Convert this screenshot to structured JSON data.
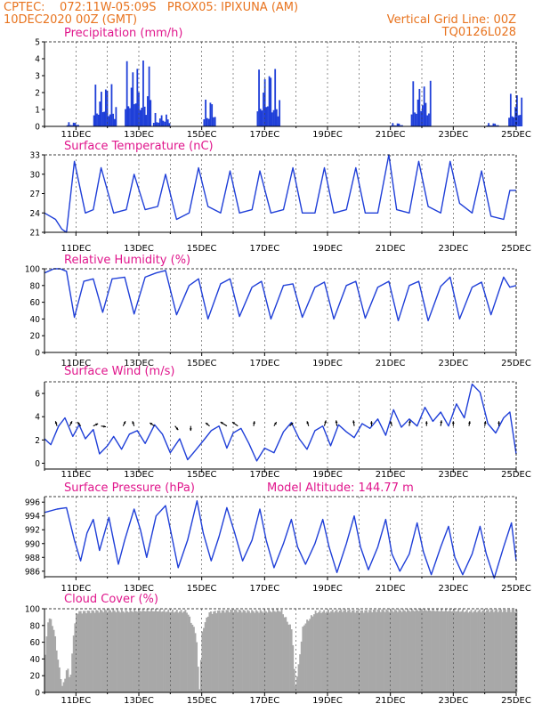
{
  "header": {
    "line1_left": "CPTEC:    072:11W-05:09S   PROX05: IPIXUNA (AM)",
    "line2_left": "10DEC2020 00Z (GMT)",
    "line2_right": "Vertical Grid Line: 00Z",
    "line3_right": "TQ0126L028"
  },
  "colors": {
    "header": "#e8731e",
    "title": "#e0168c",
    "series": "#1f3fd8",
    "cloud": "#a8a8a8",
    "arrow": "#000000"
  },
  "chart_data": [
    {
      "type": "bar",
      "title": "Precipitation (mm/h)",
      "ylim": [
        0,
        5
      ],
      "yticks": [
        0,
        1,
        2,
        3,
        4,
        5
      ],
      "x_tick_labels": [
        "11DEC",
        "13DEC",
        "15DEC",
        "17DEC",
        "19DEC",
        "21DEC",
        "23DEC",
        "25DEC"
      ],
      "series": [
        {
          "bursts": [
            {
              "start": 0.7,
              "end": 1.05,
              "peak": 0.25
            },
            {
              "start": 1.55,
              "end": 2.25,
              "peak": 2.5
            },
            {
              "start": 2.55,
              "end": 3.35,
              "peak": 3.9
            },
            {
              "start": 3.45,
              "end": 3.95,
              "peak": 0.8
            },
            {
              "start": 5.05,
              "end": 5.4,
              "peak": 1.6
            },
            {
              "start": 6.75,
              "end": 7.45,
              "peak": 3.4
            },
            {
              "start": 11.0,
              "end": 11.35,
              "peak": 0.2
            },
            {
              "start": 11.65,
              "end": 12.25,
              "peak": 2.7
            },
            {
              "start": 14.05,
              "end": 14.4,
              "peak": 0.2
            },
            {
              "start": 14.75,
              "end": 15.15,
              "peak": 1.95
            }
          ]
        }
      ]
    },
    {
      "type": "line",
      "title": "Surface Temperature (nC)",
      "ylim": [
        21,
        33
      ],
      "yticks": [
        21,
        24,
        27,
        30,
        33
      ],
      "x_tick_labels": [
        "11DEC",
        "13DEC",
        "15DEC",
        "17DEC",
        "19DEC",
        "21DEC",
        "23DEC",
        "25DEC"
      ],
      "series": [
        {
          "name": "",
          "x": [
            0,
            0.35,
            0.55,
            0.7,
            0.95,
            1.3,
            1.55,
            1.8,
            2.2,
            2.6,
            2.85,
            3.2,
            3.6,
            3.85,
            4.2,
            4.6,
            4.9,
            5.2,
            5.6,
            5.9,
            6.2,
            6.6,
            6.85,
            7.2,
            7.6,
            7.9,
            8.2,
            8.6,
            8.9,
            9.2,
            9.6,
            9.9,
            10.2,
            10.6,
            10.95,
            11.2,
            11.6,
            11.9,
            12.2,
            12.6,
            12.9,
            13.2,
            13.6,
            13.9,
            14.2,
            14.6,
            14.8,
            15.0
          ],
          "values": [
            24,
            23,
            21.5,
            21,
            32,
            24,
            24.5,
            31,
            24,
            24.5,
            30,
            24.5,
            25,
            30,
            23,
            24,
            31,
            25,
            24,
            30.5,
            24,
            24.5,
            30.5,
            24,
            24.5,
            31,
            24,
            24,
            31,
            24,
            24.5,
            31,
            24,
            24,
            33,
            24.5,
            24,
            32,
            25,
            24,
            32,
            25.5,
            24,
            30.5,
            23.5,
            23,
            27.5,
            27.5
          ]
        }
      ]
    },
    {
      "type": "line",
      "title": "Relative Humidity (%)",
      "ylim": [
        0,
        100
      ],
      "yticks": [
        0,
        20,
        40,
        60,
        80,
        100
      ],
      "x_tick_labels": [
        "11DEC",
        "13DEC",
        "15DEC",
        "17DEC",
        "19DEC",
        "21DEC",
        "23DEC",
        "25DEC"
      ],
      "series": [
        {
          "name": "",
          "x": [
            0,
            0.3,
            0.5,
            0.7,
            0.95,
            1.25,
            1.55,
            1.85,
            2.15,
            2.55,
            2.85,
            3.2,
            3.55,
            3.85,
            4.2,
            4.6,
            4.9,
            5.2,
            5.6,
            5.9,
            6.2,
            6.6,
            6.9,
            7.2,
            7.6,
            7.9,
            8.2,
            8.6,
            8.9,
            9.2,
            9.6,
            9.9,
            10.2,
            10.6,
            10.95,
            11.25,
            11.6,
            11.9,
            12.2,
            12.6,
            12.9,
            13.2,
            13.6,
            13.9,
            14.2,
            14.6,
            14.8,
            15.0
          ],
          "values": [
            95,
            100,
            100,
            97,
            42,
            85,
            88,
            48,
            88,
            90,
            46,
            90,
            95,
            98,
            45,
            80,
            88,
            40,
            82,
            88,
            43,
            78,
            85,
            40,
            80,
            82,
            42,
            78,
            84,
            40,
            80,
            85,
            41,
            78,
            85,
            38,
            80,
            85,
            38,
            79,
            90,
            40,
            78,
            84,
            45,
            90,
            78,
            80
          ]
        }
      ]
    },
    {
      "type": "line",
      "title": "Surface Wind (m/s)",
      "ylim": [
        -0.5,
        7
      ],
      "yticks": [
        0,
        2,
        4,
        6
      ],
      "x_tick_labels": [
        "11DEC",
        "13DEC",
        "15DEC",
        "17DEC",
        "19DEC",
        "21DEC",
        "23DEC",
        "25DEC"
      ],
      "series": [
        {
          "name": "",
          "x": [
            0,
            0.2,
            0.45,
            0.65,
            0.9,
            1.1,
            1.3,
            1.55,
            1.75,
            2.0,
            2.2,
            2.45,
            2.7,
            2.95,
            3.2,
            3.5,
            3.75,
            4.0,
            4.3,
            4.55,
            4.8,
            5.1,
            5.3,
            5.55,
            5.8,
            6.0,
            6.25,
            6.5,
            6.75,
            7.0,
            7.3,
            7.6,
            7.85,
            8.1,
            8.35,
            8.6,
            8.85,
            9.1,
            9.35,
            9.6,
            9.85,
            10.1,
            10.35,
            10.6,
            10.85,
            11.1,
            11.35,
            11.6,
            11.85,
            12.1,
            12.35,
            12.6,
            12.85,
            13.1,
            13.35,
            13.6,
            13.85,
            14.1,
            14.35,
            14.6,
            14.8,
            15.0
          ],
          "values": [
            2.1,
            1.6,
            3.2,
            3.9,
            2.3,
            3.3,
            2.1,
            2.9,
            0.8,
            1.5,
            2.3,
            1.2,
            2.5,
            2.8,
            1.7,
            3.3,
            2.5,
            0.9,
            2.1,
            0.3,
            1.1,
            2.1,
            2.8,
            3.2,
            1.3,
            2.6,
            3.0,
            1.7,
            0.2,
            1.3,
            0.9,
            2.7,
            3.5,
            2.1,
            1.2,
            2.8,
            3.2,
            1.5,
            3.3,
            2.7,
            2.2,
            3.4,
            3.0,
            3.8,
            2.4,
            4.6,
            3.1,
            3.8,
            3.2,
            4.8,
            3.6,
            4.4,
            3.2,
            5.1,
            3.9,
            6.8,
            6.1,
            3.4,
            2.6,
            3.9,
            4.4,
            0.8
          ]
        }
      ],
      "vectors": [
        {
          "x": 0.4,
          "u": -0.2,
          "v": 0.6
        },
        {
          "x": 0.8,
          "u": 0.3,
          "v": 0.6
        },
        {
          "x": 1.15,
          "u": -0.4,
          "v": 0.5
        },
        {
          "x": 1.55,
          "u": 0.6,
          "v": 0.3
        },
        {
          "x": 1.8,
          "u": 0.6,
          "v": -0.1
        },
        {
          "x": 2.5,
          "u": 0.3,
          "v": 0.6
        },
        {
          "x": 2.85,
          "u": -0.2,
          "v": 0.6
        },
        {
          "x": 3.5,
          "u": -0.6,
          "v": 0.4
        },
        {
          "x": 4.15,
          "u": 0.4,
          "v": -0.5
        },
        {
          "x": 4.65,
          "u": 0,
          "v": -0.6
        },
        {
          "x": 5.25,
          "u": -0.5,
          "v": 0.4
        },
        {
          "x": 5.8,
          "u": -0.8,
          "v": 0.5
        },
        {
          "x": 6.15,
          "u": -0.7,
          "v": 0.5
        },
        {
          "x": 6.65,
          "u": 0.1,
          "v": 0.6
        },
        {
          "x": 7.3,
          "u": 0.3,
          "v": 0.5
        },
        {
          "x": 7.8,
          "u": 0.4,
          "v": 0.4
        },
        {
          "x": 8.4,
          "u": -0.2,
          "v": 0.6
        },
        {
          "x": 8.9,
          "u": 0.2,
          "v": 0.7
        },
        {
          "x": 9.3,
          "u": -0.1,
          "v": 0.7
        },
        {
          "x": 9.85,
          "u": -0.1,
          "v": 0.7
        },
        {
          "x": 10.4,
          "u": 0,
          "v": 0.6
        },
        {
          "x": 11.05,
          "u": -0.2,
          "v": 0.6
        },
        {
          "x": 11.6,
          "u": 0.1,
          "v": 0.7
        },
        {
          "x": 12.15,
          "u": 0,
          "v": 0.6
        },
        {
          "x": 12.6,
          "u": 0.1,
          "v": 0.7
        },
        {
          "x": 13.0,
          "u": 0,
          "v": 0.6
        },
        {
          "x": 13.5,
          "u": 0.1,
          "v": 0.6
        },
        {
          "x": 14.0,
          "u": 0.1,
          "v": 0.6
        },
        {
          "x": 14.45,
          "u": 0,
          "v": 0.6
        }
      ]
    },
    {
      "type": "line",
      "title": "Surface Pressure (hPa)",
      "annotation": "Model Altitude: 144.77 m",
      "ylim": [
        985.2,
        996.8
      ],
      "yticks": [
        986,
        988,
        990,
        992,
        994,
        996
      ],
      "x_tick_labels": [
        "11DEC",
        "13DEC",
        "15DEC",
        "17DEC",
        "19DEC",
        "21DEC",
        "23DEC",
        "25DEC"
      ],
      "series": [
        {
          "name": "",
          "x": [
            0,
            0.4,
            0.7,
            0.95,
            1.15,
            1.35,
            1.55,
            1.75,
            2.05,
            2.35,
            2.55,
            2.85,
            3.05,
            3.25,
            3.55,
            3.85,
            4.05,
            4.25,
            4.55,
            4.85,
            5.05,
            5.3,
            5.55,
            5.8,
            6.05,
            6.3,
            6.6,
            6.85,
            7.05,
            7.3,
            7.6,
            7.85,
            8.05,
            8.3,
            8.6,
            8.85,
            9.05,
            9.3,
            9.6,
            9.85,
            10.05,
            10.3,
            10.6,
            10.85,
            11.05,
            11.3,
            11.6,
            11.85,
            12.05,
            12.3,
            12.6,
            12.85,
            13.05,
            13.3,
            13.6,
            13.85,
            14.05,
            14.3,
            14.6,
            14.85,
            15.0
          ],
          "values": [
            994.5,
            995,
            995.2,
            990.5,
            987.5,
            991.5,
            993.5,
            989,
            993.8,
            987,
            990.5,
            995,
            992,
            988,
            994,
            995.5,
            991,
            986.5,
            990.5,
            996.2,
            991.5,
            987.5,
            991,
            995.2,
            991.5,
            987.5,
            990.5,
            995,
            990.5,
            986.5,
            990,
            993.5,
            989.5,
            987,
            990,
            993.5,
            989.5,
            985.8,
            990,
            994,
            989.5,
            986.2,
            989.5,
            993.5,
            988.5,
            986,
            988.5,
            993,
            988.8,
            985.5,
            989.5,
            992.5,
            988,
            985.5,
            988.5,
            992.5,
            988.5,
            985,
            989.5,
            993,
            987.5
          ]
        }
      ]
    },
    {
      "type": "bar",
      "title": "Cloud Cover (%)",
      "ylim": [
        0,
        100
      ],
      "yticks": [
        0,
        20,
        40,
        60,
        80,
        100
      ],
      "x_tick_labels": [
        "11DEC",
        "13DEC",
        "15DEC",
        "17DEC",
        "19DEC",
        "21DEC",
        "23DEC",
        "25DEC"
      ],
      "series": [
        {
          "x": [
            0,
            0.1,
            0.2,
            0.3,
            0.4,
            0.55,
            0.7,
            0.8,
            0.9,
            1.0,
            1.5,
            2.0,
            2.5,
            3.0,
            3.5,
            4.0,
            4.5,
            4.8,
            4.9,
            5.0,
            5.2,
            5.5,
            6.0,
            6.5,
            7.0,
            7.5,
            7.85,
            7.95,
            8.05,
            8.2,
            8.6,
            9.0,
            9.5,
            10.0,
            10.5,
            11.0,
            11.5,
            12.0,
            12.5,
            13.0,
            13.5,
            14.0,
            14.5,
            15.0
          ],
          "values": [
            45,
            90,
            85,
            70,
            40,
            5,
            30,
            15,
            70,
            96,
            97,
            98,
            97,
            98,
            98,
            97,
            97,
            70,
            2,
            75,
            95,
            97,
            98,
            97,
            97,
            98,
            75,
            5,
            30,
            80,
            96,
            97,
            98,
            97,
            98,
            98,
            98,
            99,
            98,
            98,
            97,
            98,
            98,
            98
          ]
        }
      ]
    }
  ]
}
